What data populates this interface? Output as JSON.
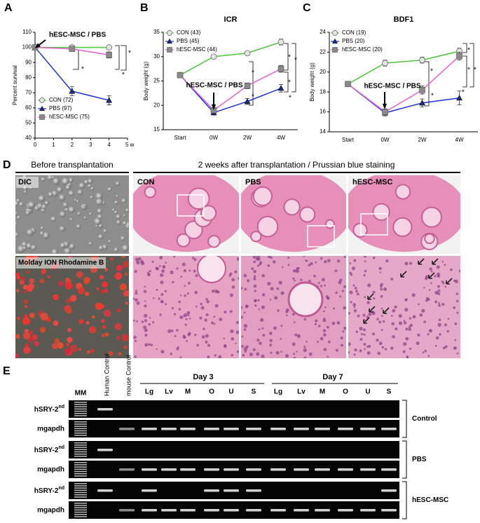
{
  "chart_data": [
    {
      "panel_label": "A",
      "type": "line",
      "y_label": "Percent survival",
      "x": [
        0,
        2,
        4
      ],
      "xlim": [
        0,
        5
      ],
      "xticks": [
        0,
        1,
        2,
        3,
        4,
        {
          "value": 5,
          "label": "5 w"
        }
      ],
      "ylim": [
        40,
        110
      ],
      "yticks": [
        40,
        50,
        60,
        70,
        80,
        90,
        100,
        110
      ],
      "series": [
        {
          "name": "CON (72)",
          "color": "#4cc83c",
          "marker": "circle",
          "values": [
            100,
            100,
            100
          ],
          "errors": [
            0,
            0,
            0
          ]
        },
        {
          "name": "PBS (97)",
          "color": "#1a32d8",
          "marker": "triangle",
          "values": [
            100,
            71,
            65
          ],
          "errors": [
            0,
            3,
            3
          ]
        },
        {
          "name": "hESC-MSC (75)",
          "color": "#ea5fd3",
          "marker": "square",
          "values": [
            100,
            99,
            95
          ],
          "errors": [
            0,
            1,
            2
          ]
        }
      ],
      "annotation": "hESC-MSC / PBS",
      "significance": [
        "*",
        "*",
        "*"
      ]
    },
    {
      "panel_label": "B",
      "type": "line",
      "title": "ICR",
      "y_label": "Body weight (g)",
      "categories": [
        "Start",
        "0W",
        "2W",
        "4W"
      ],
      "ylim": [
        15,
        35
      ],
      "yticks": [
        15,
        20,
        25,
        30,
        35
      ],
      "series": [
        {
          "name": "CON (43)",
          "color": "#4cc83c",
          "marker": "circle",
          "values": [
            26.2,
            30,
            30.7,
            33
          ],
          "errors": [
            0.4,
            0.4,
            0.4,
            0.6
          ]
        },
        {
          "name": "PBS (45)",
          "color": "#1a32d8",
          "marker": "triangle",
          "values": [
            26.2,
            18.5,
            20.8,
            23.5
          ],
          "errors": [
            0.4,
            0.5,
            0.6,
            0.8
          ]
        },
        {
          "name": "hESC-MSC (44)",
          "color": "#ea5fd3",
          "marker": "square",
          "values": [
            26.2,
            19,
            24,
            27.5
          ],
          "errors": [
            0.4,
            0.5,
            0.6,
            0.7
          ]
        }
      ],
      "annotation": "hESC-MSC / PBS",
      "significance": [
        "*",
        "*",
        "*",
        "*",
        "*",
        "*"
      ]
    },
    {
      "panel_label": "C",
      "type": "line",
      "title": "BDF1",
      "y_label": "Body weight (g)",
      "categories": [
        "Start",
        "0W",
        "2W",
        "4W"
      ],
      "ylim": [
        14,
        24
      ],
      "yticks": [
        14,
        16,
        18,
        20,
        22,
        24
      ],
      "series": [
        {
          "name": "CON (19)",
          "color": "#4cc83c",
          "marker": "circle",
          "values": [
            18.8,
            20.9,
            21.2,
            22.1
          ],
          "errors": [
            0.2,
            0.3,
            0.3,
            0.3
          ]
        },
        {
          "name": "PBS (20)",
          "color": "#1a32d8",
          "marker": "triangle",
          "values": [
            18.8,
            15.9,
            16.9,
            17.4
          ],
          "errors": [
            0.2,
            0.3,
            0.4,
            0.7
          ]
        },
        {
          "name": "hESC-MSC (20)",
          "color": "#ea5fd3",
          "marker": "square",
          "values": [
            18.8,
            16,
            18.2,
            21.6
          ],
          "errors": [
            0.2,
            0.3,
            0.4,
            0.4
          ]
        }
      ],
      "annotation": "hESC-MSC / PBS",
      "significance": [
        "*",
        "*",
        "*",
        "*",
        "*",
        "*"
      ]
    }
  ],
  "panel_d": {
    "panel_label": "D",
    "headers": [
      "Before transplantation",
      "2 weeks after transplantation / Prussian blue staining"
    ],
    "image_labels": [
      "DIC",
      "Molday ION Rhodamine B",
      "CON",
      "PBS",
      "hESC-MSC"
    ]
  },
  "panel_e": {
    "panel_label": "E",
    "lanes_top": [
      "MM",
      "Human Control",
      "mouse Control"
    ],
    "days": [
      "Day 3",
      "Day 7"
    ],
    "tissues": [
      "Lg",
      "Lv",
      "M",
      "O",
      "U",
      "S",
      "Lg",
      "Lv",
      "M",
      "O",
      "U",
      "S"
    ],
    "rows": [
      {
        "text": "hSRY-2",
        "sup": "nd"
      },
      "mgapdh",
      {
        "text": "hSRY-2",
        "sup": "nd"
      },
      "mgapdh",
      {
        "text": "hSRY-2",
        "sup": "nd"
      },
      "mgapdh"
    ],
    "groups": [
      "Control",
      "PBS",
      "hESC-MSC"
    ]
  }
}
